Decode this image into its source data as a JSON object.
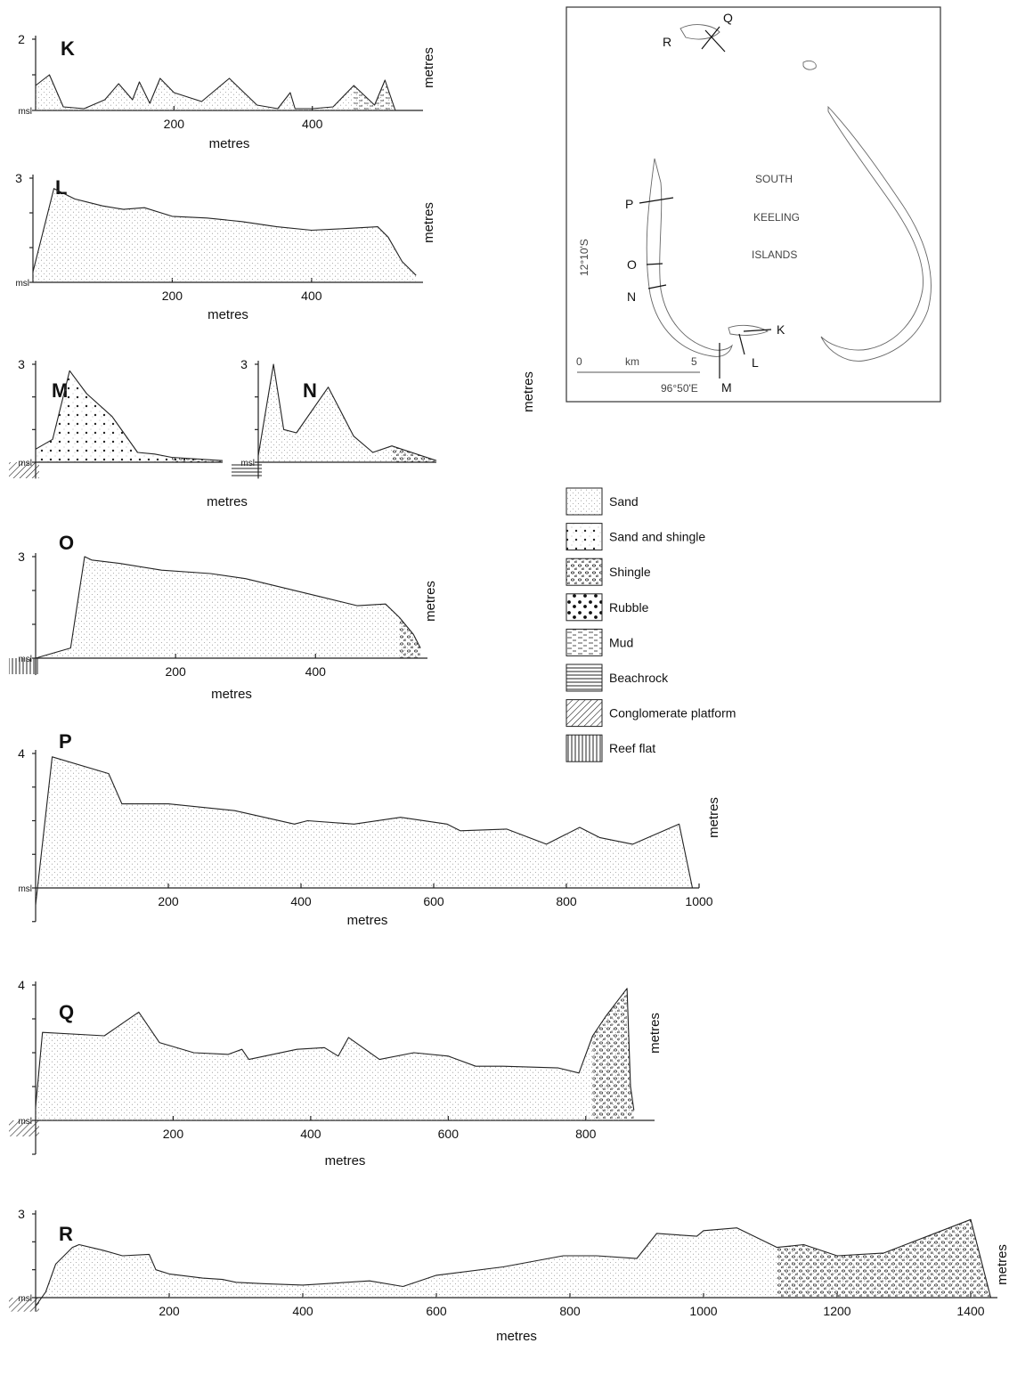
{
  "common": {
    "xlabel": "metres",
    "ylabel": "metres",
    "msl": "msl"
  },
  "profiles": [
    {
      "id": "K",
      "xticks": [
        200,
        400
      ],
      "ytop": 2,
      "show_xlabel": true
    },
    {
      "id": "L",
      "xticks": [
        200,
        400
      ],
      "ytop": 3,
      "show_xlabel": true
    },
    {
      "id": "M",
      "xticks": [],
      "ytop": 3,
      "show_xlabel": true
    },
    {
      "id": "N",
      "xticks": [],
      "ytop": 3,
      "show_xlabel": false
    },
    {
      "id": "O",
      "xticks": [
        200,
        400
      ],
      "ytop": 3,
      "show_xlabel": true
    },
    {
      "id": "P",
      "xticks": [
        200,
        400,
        600,
        800,
        1000
      ],
      "ytop": 4,
      "show_xlabel": true
    },
    {
      "id": "Q",
      "xticks": [
        200,
        400,
        600,
        800
      ],
      "ytop": 4,
      "show_xlabel": true
    },
    {
      "id": "R",
      "xticks": [
        200,
        400,
        600,
        800,
        1000,
        1200,
        1400
      ],
      "ytop": 3,
      "show_xlabel": true
    }
  ],
  "legend": [
    {
      "key": "sand",
      "label": "Sand"
    },
    {
      "key": "sand-shingle",
      "label": "Sand and shingle"
    },
    {
      "key": "shingle",
      "label": "Shingle"
    },
    {
      "key": "rubble",
      "label": "Rubble"
    },
    {
      "key": "mud",
      "label": "Mud"
    },
    {
      "key": "beachrock",
      "label": "Beachrock"
    },
    {
      "key": "conglomerate",
      "label": "Conglomerate platform"
    },
    {
      "key": "reef-flat",
      "label": "Reef flat"
    }
  ],
  "map": {
    "title_lines": [
      "SOUTH",
      "KEELING",
      "ISLANDS"
    ],
    "transects": [
      "K",
      "L",
      "M",
      "N",
      "O",
      "P",
      "Q",
      "R"
    ],
    "scale": {
      "start": "0",
      "end": "5",
      "unit": "km"
    },
    "longitude": "96°50'E",
    "latitude": "12°10'S"
  },
  "chart_data": [
    {
      "type": "area",
      "title": "K",
      "xlabel": "metres",
      "ylabel": "metres",
      "xlim": [
        0,
        560
      ],
      "ylim": [
        0,
        2
      ],
      "x": [
        0,
        20,
        40,
        70,
        100,
        120,
        140,
        150,
        165,
        180,
        200,
        240,
        280,
        320,
        350,
        368,
        375,
        400,
        430,
        460,
        490,
        505,
        520
      ],
      "y": [
        0.7,
        1.0,
        0.1,
        0.05,
        0.3,
        0.75,
        0.3,
        0.8,
        0.2,
        0.9,
        0.5,
        0.25,
        0.9,
        0.15,
        0.05,
        0.5,
        0.05,
        0.05,
        0.1,
        0.7,
        0.15,
        0.85,
        0.0
      ],
      "materials": [
        "Sand",
        "Mud"
      ]
    },
    {
      "type": "area",
      "title": "L",
      "xlabel": "metres",
      "ylabel": "metres",
      "xlim": [
        0,
        560
      ],
      "ylim": [
        0,
        3
      ],
      "x": [
        0,
        30,
        60,
        80,
        100,
        130,
        160,
        200,
        250,
        300,
        350,
        400,
        450,
        495,
        510,
        530,
        550
      ],
      "y": [
        0.3,
        2.7,
        2.4,
        2.3,
        2.2,
        2.1,
        2.15,
        1.9,
        1.85,
        1.75,
        1.6,
        1.5,
        1.55,
        1.6,
        1.3,
        0.6,
        0.2
      ],
      "materials": [
        "Sand"
      ]
    },
    {
      "type": "area",
      "title": "M",
      "xlabel": "metres",
      "ylabel": "metres",
      "ylim": [
        -0.5,
        3
      ],
      "x": [
        0,
        10,
        20,
        30,
        45,
        60,
        70,
        80,
        110
      ],
      "y": [
        0.4,
        0.7,
        2.8,
        2.1,
        1.4,
        0.3,
        0.25,
        0.15,
        0.05
      ],
      "materials": [
        "Sand and shingle",
        "Shingle",
        "Conglomerate platform",
        "Reef flat"
      ]
    },
    {
      "type": "area",
      "title": "N",
      "xlabel": "metres",
      "ylabel": "metres",
      "ylim": [
        -0.5,
        3
      ],
      "x": [
        0,
        12,
        20,
        30,
        55,
        75,
        90,
        105,
        140
      ],
      "y": [
        0.2,
        3.0,
        1.0,
        0.9,
        2.3,
        0.8,
        0.3,
        0.5,
        0.05
      ],
      "materials": [
        "Sand",
        "Shingle",
        "Mud",
        "Beachrock"
      ]
    },
    {
      "type": "area",
      "title": "O",
      "xlabel": "metres",
      "ylabel": "metres",
      "xlim": [
        0,
        560
      ],
      "ylim": [
        -0.5,
        3
      ],
      "x": [
        0,
        50,
        70,
        80,
        120,
        180,
        250,
        300,
        350,
        400,
        460,
        500,
        520,
        540,
        550
      ],
      "y": [
        0.0,
        0.3,
        3.0,
        2.9,
        2.8,
        2.6,
        2.5,
        2.35,
        2.1,
        1.85,
        1.55,
        1.6,
        1.2,
        0.7,
        0.3
      ],
      "materials": [
        "Sand",
        "Shingle",
        "Reef flat"
      ]
    },
    {
      "type": "area",
      "title": "P",
      "xlabel": "metres",
      "ylabel": "metres",
      "xlim": [
        0,
        1000
      ],
      "ylim": [
        -1,
        4
      ],
      "x": [
        0,
        25,
        110,
        130,
        200,
        300,
        390,
        410,
        480,
        550,
        620,
        640,
        710,
        770,
        820,
        850,
        900,
        970,
        990
      ],
      "y": [
        -0.5,
        3.9,
        3.4,
        2.5,
        2.5,
        2.3,
        1.9,
        2.0,
        1.9,
        2.1,
        1.9,
        1.7,
        1.75,
        1.3,
        1.8,
        1.5,
        1.3,
        1.9,
        0.0
      ],
      "materials": [
        "Sand"
      ]
    },
    {
      "type": "area",
      "title": "Q",
      "xlabel": "metres",
      "ylabel": "metres",
      "xlim": [
        0,
        900
      ],
      "ylim": [
        -1,
        4
      ],
      "x": [
        0,
        10,
        100,
        150,
        180,
        230,
        280,
        300,
        310,
        380,
        420,
        440,
        455,
        500,
        550,
        600,
        640,
        680,
        760,
        790,
        810,
        830,
        860,
        865,
        870
      ],
      "y": [
        0.4,
        2.6,
        2.5,
        3.2,
        2.3,
        2.0,
        1.95,
        2.1,
        1.8,
        2.1,
        2.15,
        1.9,
        2.45,
        1.8,
        2.0,
        1.9,
        1.6,
        1.6,
        1.55,
        1.4,
        2.5,
        3.1,
        3.9,
        1.0,
        0.3
      ],
      "materials": [
        "Sand",
        "Shingle",
        "Sand and shingle",
        "Conglomerate platform"
      ]
    },
    {
      "type": "area",
      "title": "R",
      "xlabel": "metres",
      "ylabel": "metres",
      "xlim": [
        0,
        1440
      ],
      "ylim": [
        -0.5,
        3
      ],
      "x": [
        0,
        15,
        30,
        55,
        65,
        100,
        130,
        170,
        180,
        200,
        250,
        280,
        300,
        340,
        400,
        500,
        550,
        600,
        700,
        790,
        840,
        900,
        930,
        990,
        1000,
        1050,
        1110,
        1150,
        1200,
        1270,
        1400,
        1430
      ],
      "y": [
        -0.3,
        0.2,
        1.2,
        1.8,
        1.9,
        1.7,
        1.5,
        1.55,
        1.0,
        0.85,
        0.7,
        0.65,
        0.55,
        0.5,
        0.45,
        0.6,
        0.4,
        0.8,
        1.1,
        1.5,
        1.5,
        1.4,
        2.3,
        2.2,
        2.4,
        2.5,
        1.8,
        1.9,
        1.5,
        1.6,
        2.8,
        0.0
      ],
      "materials": [
        "Sand",
        "Shingle",
        "Conglomerate platform"
      ]
    }
  ]
}
